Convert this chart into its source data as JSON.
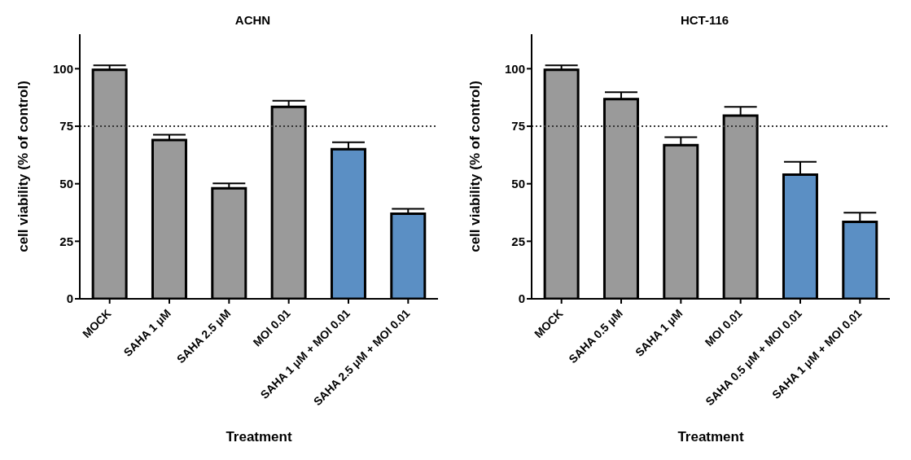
{
  "chart_data": [
    {
      "type": "bar",
      "title": "ACHN",
      "xlabel": "Treatment",
      "ylabel": "cell viability (% of control)",
      "categories": [
        "MOCK",
        "SAHA 1 μM",
        "SAHA 2.5 μM",
        "MOI 0.01",
        "SAHA 1 μM + MOI 0.01",
        "SAHA 2.5 μM + MOI 0.01"
      ],
      "values": [
        99.5,
        69,
        48,
        83.4,
        65,
        37
      ],
      "errors": [
        [
          99.5,
          101.5
        ],
        [
          69,
          71.3
        ],
        [
          48,
          50.2
        ],
        [
          83.4,
          86.1
        ],
        [
          65,
          68
        ],
        [
          37,
          39.1
        ]
      ],
      "colors": [
        "#9a9a9a",
        "#9a9a9a",
        "#9a9a9a",
        "#9a9a9a",
        "#5b8fc4",
        "#5b8fc4"
      ],
      "ylim": [
        0,
        115
      ],
      "yticks": [
        0,
        25,
        50,
        75,
        100
      ],
      "grid": false,
      "legend": false,
      "ref_lines": [
        {
          "axis": "y",
          "value": 75,
          "label": null,
          "line_style": "dotted",
          "color": "#333333"
        }
      ]
    },
    {
      "type": "bar",
      "title": "HCT-116",
      "xlabel": "Treatment",
      "ylabel": "cell viability (% of control)",
      "categories": [
        "MOCK",
        "SAHA 0.5 μM",
        "SAHA 1 μM",
        "MOI 0.01",
        "SAHA 0.5 μM  + MOI 0.01",
        "SAHA 1 μM  + MOI 0.01"
      ],
      "values": [
        99.5,
        86.8,
        66.8,
        79.6,
        54,
        33.4
      ],
      "errors": [
        [
          99.5,
          101.5
        ],
        [
          86.8,
          89.8
        ],
        [
          66.8,
          70.2
        ],
        [
          79.6,
          83.4
        ],
        [
          54,
          59.5
        ],
        [
          33.4,
          37.4
        ]
      ],
      "colors": [
        "#9a9a9a",
        "#9a9a9a",
        "#9a9a9a",
        "#9a9a9a",
        "#5b8fc4",
        "#5b8fc4"
      ],
      "ylim": [
        0,
        115
      ],
      "yticks": [
        0,
        25,
        50,
        75,
        100
      ],
      "grid": false,
      "legend": false,
      "ref_lines": [
        {
          "axis": "y",
          "value": 75,
          "label": null,
          "line_style": "dotted",
          "color": "#333333"
        }
      ]
    }
  ]
}
